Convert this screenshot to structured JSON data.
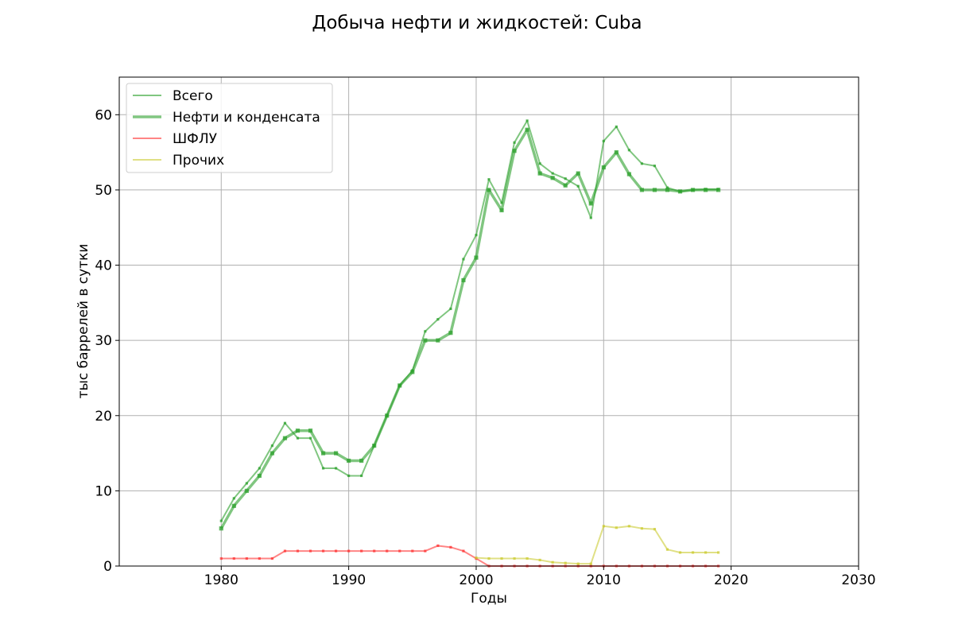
{
  "chart_data": {
    "type": "line",
    "title": "Добыча нефти и жидкостей: Cuba",
    "xlabel": "Годы",
    "ylabel": "тыс баррелей в сутки",
    "xlim": [
      1972,
      2030
    ],
    "ylim": [
      0,
      65
    ],
    "xticks": [
      1980,
      1990,
      2000,
      2010,
      2020,
      2030
    ],
    "yticks": [
      0,
      10,
      20,
      30,
      40,
      50,
      60
    ],
    "grid": true,
    "legend_position": "top-left",
    "x": [
      1980,
      1981,
      1982,
      1983,
      1984,
      1985,
      1986,
      1987,
      1988,
      1989,
      1990,
      1991,
      1992,
      1993,
      1994,
      1995,
      1996,
      1997,
      1998,
      1999,
      2000,
      2001,
      2002,
      2003,
      2004,
      2005,
      2006,
      2007,
      2008,
      2009,
      2010,
      2011,
      2012,
      2013,
      2014,
      2015,
      2016,
      2017,
      2018,
      2019
    ],
    "series": [
      {
        "name": "Всего",
        "color": "#2ca02c",
        "style": "thin",
        "values": [
          6,
          9,
          11,
          13,
          16,
          19,
          17,
          17,
          13,
          13,
          12,
          12,
          16,
          20,
          24,
          26,
          31.2,
          32.8,
          34.2,
          40.8,
          44,
          51.4,
          48.3,
          56.3,
          59.2,
          53.5,
          52.2,
          51.5,
          50.5,
          46.3,
          56.5,
          58.4,
          55.3,
          53.5,
          53.2,
          50.3,
          49.8,
          50,
          50.1,
          50.1
        ]
      },
      {
        "name": "Нефти и конденсата",
        "color": "#2ca02c",
        "style": "thick",
        "values": [
          5,
          8,
          10,
          12,
          15,
          17,
          18,
          18,
          15,
          15,
          14,
          14,
          16,
          20,
          24,
          25.8,
          30,
          30,
          31,
          38,
          41,
          50,
          47.3,
          55.2,
          58,
          52.2,
          51.6,
          50.6,
          52.2,
          48.2,
          53,
          55,
          52.1,
          50,
          50,
          50,
          49.8,
          50,
          50,
          50
        ]
      },
      {
        "name": "ШФЛУ",
        "color": "#ff3333",
        "style": "thin",
        "values": [
          1,
          1,
          1,
          1,
          1,
          2,
          2,
          2,
          2,
          2,
          2,
          2,
          2,
          2,
          2,
          2,
          2,
          2.7,
          2.5,
          2,
          1,
          0,
          0,
          0,
          0,
          0,
          0,
          0,
          0,
          0,
          0,
          0,
          0,
          0,
          0,
          0,
          0,
          0,
          0,
          0
        ]
      },
      {
        "name": "Прочих",
        "color": "#cccc33",
        "style": "thin",
        "values": [
          null,
          null,
          null,
          null,
          null,
          null,
          null,
          null,
          null,
          null,
          null,
          null,
          null,
          null,
          null,
          null,
          null,
          null,
          null,
          null,
          1.1,
          1,
          1,
          1,
          1,
          0.8,
          0.5,
          0.4,
          0.3,
          0.3,
          5.3,
          5.1,
          5.3,
          5,
          4.9,
          2.2,
          1.8,
          1.8,
          1.8,
          1.8
        ]
      }
    ]
  }
}
